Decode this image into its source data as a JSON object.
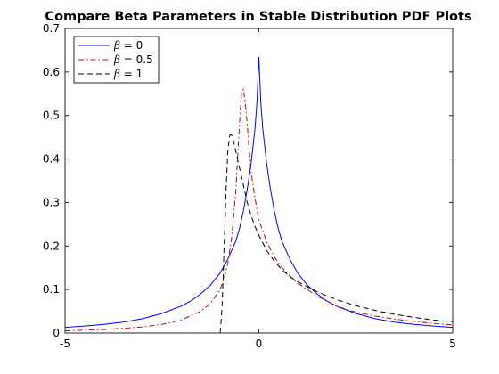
{
  "chart_data": {
    "type": "line",
    "title": "Compare Beta Parameters in Stable Distribution PDF Plots",
    "xlabel": "",
    "ylabel": "",
    "xlim": [
      -5,
      5
    ],
    "ylim": [
      0,
      0.7
    ],
    "xticks": [
      "-5",
      "0",
      "5"
    ],
    "yticks": [
      "0",
      "0.1",
      "0.2",
      "0.3",
      "0.4",
      "0.5",
      "0.6",
      "0.7"
    ],
    "grid": false,
    "legend_position": "top-left",
    "series": [
      {
        "name": "β = 0",
        "symbol": "β",
        "name_rest": " = 0",
        "color": "#0000ff",
        "style": "solid",
        "x": [
          -5,
          -4.5,
          -4,
          -3.5,
          -3,
          -2.5,
          -2,
          -1.75,
          -1.5,
          -1.25,
          -1,
          -0.8,
          -0.6,
          -0.5,
          -0.4,
          -0.3,
          -0.2,
          -0.1,
          -0.05,
          0,
          0.05,
          0.1,
          0.2,
          0.3,
          0.4,
          0.5,
          0.6,
          0.8,
          1,
          1.25,
          1.5,
          1.75,
          2,
          2.5,
          3,
          3.5,
          4,
          4.5,
          5
        ],
        "y": [
          0.013,
          0.016,
          0.02,
          0.025,
          0.033,
          0.045,
          0.062,
          0.074,
          0.09,
          0.11,
          0.138,
          0.17,
          0.21,
          0.24,
          0.28,
          0.33,
          0.39,
          0.47,
          0.53,
          0.635,
          0.53,
          0.47,
          0.39,
          0.33,
          0.28,
          0.24,
          0.21,
          0.17,
          0.138,
          0.11,
          0.09,
          0.074,
          0.062,
          0.045,
          0.033,
          0.025,
          0.02,
          0.016,
          0.013
        ]
      },
      {
        "name": "β = 0.5",
        "symbol": "β",
        "name_rest": " = 0.5",
        "color": "#cc0000",
        "style": "dashdot",
        "x": [
          -5,
          -4,
          -3,
          -2.5,
          -2,
          -1.5,
          -1.25,
          -1,
          -0.9,
          -0.8,
          -0.7,
          -0.6,
          -0.55,
          -0.5,
          -0.45,
          -0.4,
          -0.35,
          -0.3,
          -0.25,
          -0.2,
          -0.1,
          0,
          0.2,
          0.4,
          0.6,
          0.8,
          1,
          1.5,
          2,
          2.5,
          3,
          3.5,
          4,
          4.5,
          5
        ],
        "y": [
          0.005,
          0.008,
          0.014,
          0.02,
          0.03,
          0.05,
          0.068,
          0.1,
          0.125,
          0.16,
          0.22,
          0.32,
          0.4,
          0.48,
          0.55,
          0.56,
          0.53,
          0.48,
          0.42,
          0.37,
          0.31,
          0.26,
          0.21,
          0.175,
          0.15,
          0.13,
          0.115,
          0.085,
          0.062,
          0.048,
          0.039,
          0.032,
          0.027,
          0.022,
          0.019
        ]
      },
      {
        "name": "β = 1",
        "symbol": "β",
        "name_rest": " = 1",
        "color": "#000000",
        "style": "dashed",
        "x": [
          -1.0,
          -0.98,
          -0.95,
          -0.92,
          -0.9,
          -0.87,
          -0.85,
          -0.82,
          -0.8,
          -0.75,
          -0.7,
          -0.65,
          -0.6,
          -0.55,
          -0.5,
          -0.4,
          -0.3,
          -0.2,
          -0.1,
          0,
          0.2,
          0.4,
          0.6,
          0.8,
          1,
          1.5,
          2,
          2.5,
          3,
          3.5,
          4,
          4.5,
          5
        ],
        "y": [
          0.0,
          0.02,
          0.06,
          0.13,
          0.19,
          0.26,
          0.32,
          0.38,
          0.42,
          0.455,
          0.455,
          0.44,
          0.42,
          0.4,
          0.38,
          0.34,
          0.3,
          0.27,
          0.245,
          0.225,
          0.19,
          0.165,
          0.145,
          0.13,
          0.118,
          0.095,
          0.077,
          0.063,
          0.052,
          0.043,
          0.036,
          0.03,
          0.026
        ]
      }
    ]
  }
}
